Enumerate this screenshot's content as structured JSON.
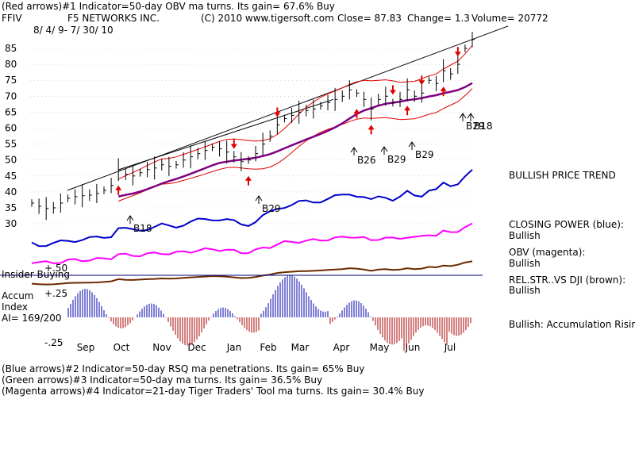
{
  "header": {
    "line1": "(Red arrows)#1 Indicator=50-day OBV ma turns. Its gain= 67.6% Buy",
    "ticker": "FFIV",
    "company": "F5 NETWORKS INC.",
    "copyright": "(C) 2010 www.tigersoft.com",
    "close_text": "Close= 87.83",
    "change_text": "Change= 1.3",
    "volume_text": "Volume= 20772",
    "date_range": "8/ 4/ 9- 7/ 30/ 10"
  },
  "right_labels": {
    "trend": "BULLISH PRICE TREND",
    "cp_title": "CLOSING POWER (blue):",
    "cp_value": "Bullish",
    "obv_title": "OBV (magenta):",
    "obv_value": "Bullish",
    "rs_title": "REL.STR..VS DJI (brown):",
    "rs_value": "Bullish",
    "accum_text": "Bullish: Accumulation Rising"
  },
  "left_labels": {
    "insider": "Insider Buying",
    "accum": "Accum",
    "index": "Index",
    "ai": "AI= 169/200",
    "plus50": "+.50",
    "plus25": "+.25",
    "minus25": "-.25"
  },
  "footer": {
    "line1": "(Blue arrows)#2 Indicator=50-day RSQ ma penetrations. Its gain= 65% Buy",
    "line2": "(Green arrows)#3 Indicator=50-day ma turns. Its gain= 36.5% Buy",
    "line3": "(Magenta arrows)#4 Indicator=21-day Tiger Traders' Tool ma turns. Its gain= 30.4% Buy"
  },
  "colors": {
    "price": "#000000",
    "ma_band": "#e00000",
    "ma50": "#800080",
    "closing_power": "#0000cc",
    "obv": "#ff00ff",
    "rel_strength": "#6b2a00",
    "accum_bars": "#0000aa",
    "zero_line": "#000080"
  },
  "chart_data": {
    "type": "line",
    "title": "F5 NETWORKS INC.",
    "y_ticks": [
      85,
      80,
      75,
      70,
      65,
      60,
      55,
      50,
      45,
      40,
      35,
      30
    ],
    "ylim": [
      30,
      88
    ],
    "months": [
      "Sep",
      "Oct",
      "Nov",
      "Dec",
      "Jan",
      "Feb",
      "Mar",
      "Apr",
      "May",
      "Jun",
      "Jul"
    ],
    "annotations": [
      "B18",
      "B29",
      "B26",
      "B29",
      "B29",
      "B29",
      "B18"
    ],
    "price_series": {
      "name": "FFIV",
      "values": [
        36.5,
        35.5,
        34.8,
        35,
        36.5,
        38,
        38.5,
        38.8,
        39,
        39.5,
        40.5,
        42,
        47,
        45.5,
        45,
        46,
        47,
        47.5,
        48.5,
        48,
        48.5,
        50,
        51,
        52,
        53,
        54,
        53.5,
        52.5,
        51,
        49.5,
        50,
        52,
        55,
        57.5,
        61,
        63,
        64,
        65,
        65.5,
        66,
        67,
        68,
        69,
        70,
        72,
        71,
        69,
        66,
        69,
        70,
        68,
        69,
        72,
        70,
        71,
        75,
        74,
        78,
        77,
        80,
        85,
        87.8
      ]
    }
  }
}
